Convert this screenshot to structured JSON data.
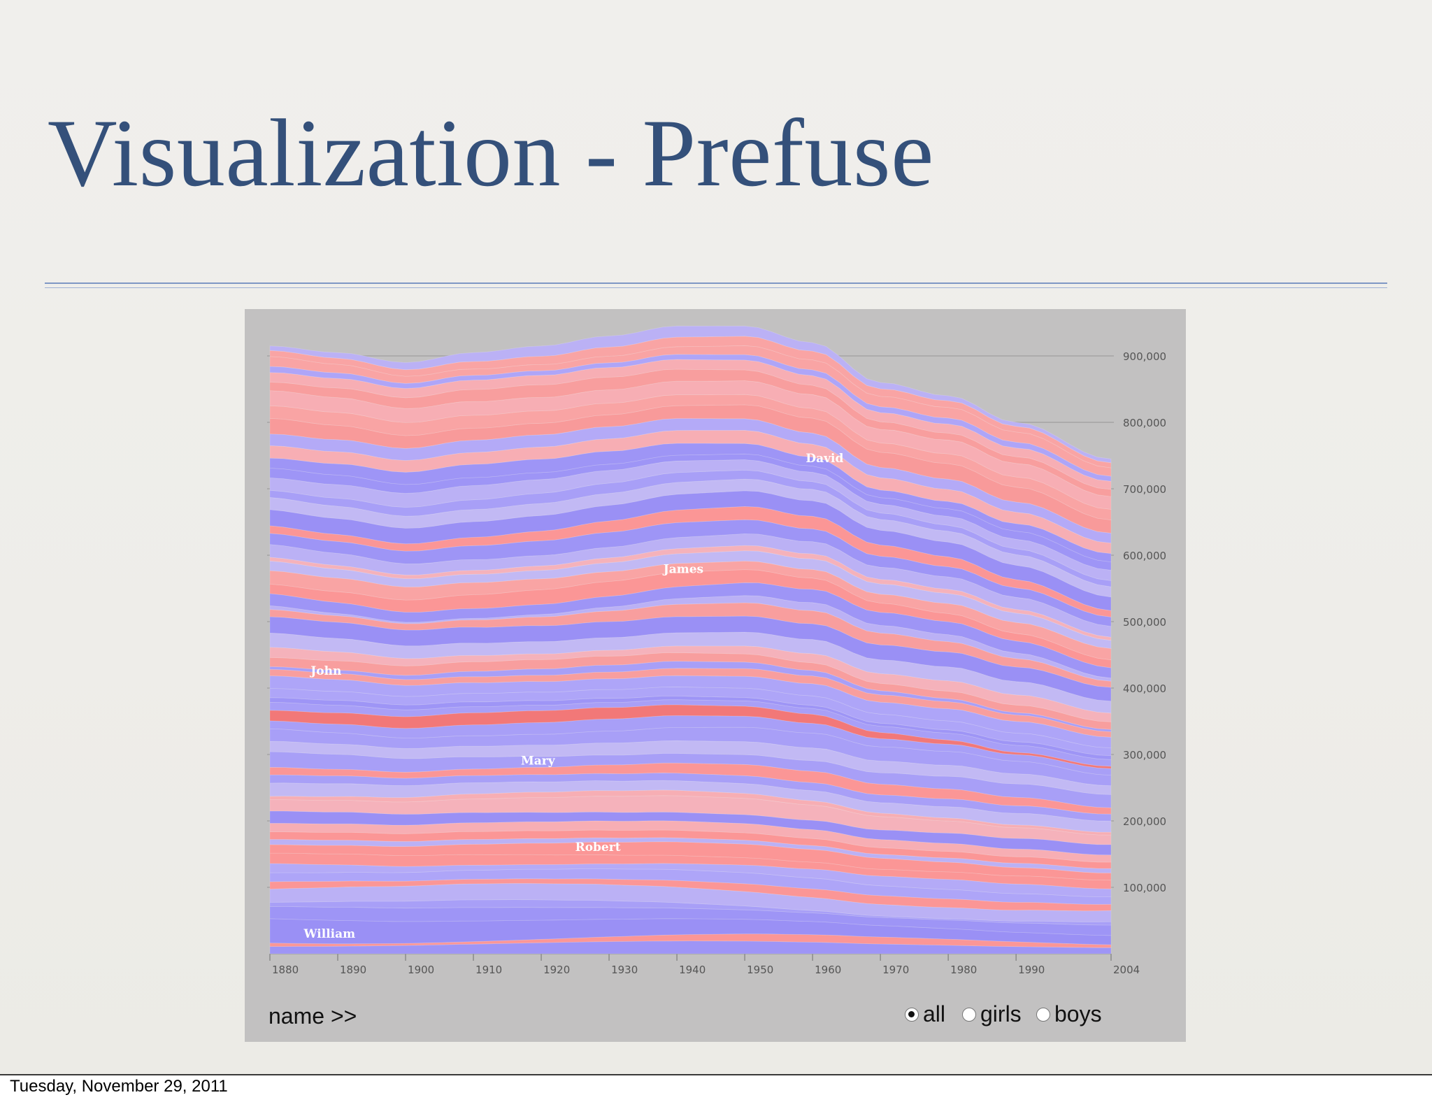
{
  "slide": {
    "title": "Visualization - Prefuse",
    "date": "Tuesday, November 29, 2011"
  },
  "controls": {
    "name_link": "name >>",
    "filters": [
      {
        "label": "all",
        "checked": true
      },
      {
        "label": "girls",
        "checked": false
      },
      {
        "label": "boys",
        "checked": false
      }
    ]
  },
  "colors": {
    "girl": "#f99a9a",
    "boy": "#a49cf6",
    "panel": "#c2c1c1"
  },
  "chart_data": {
    "type": "area",
    "x_ticks": [
      "1880",
      "1890",
      "1900",
      "1910",
      "1920",
      "1930",
      "1940",
      "1950",
      "1960",
      "1970",
      "1980",
      "1990",
      "2004"
    ],
    "y_ticks": [
      "100,000",
      "200,000",
      "300,000",
      "400,000",
      "500,000",
      "600,000",
      "700,000",
      "800,000",
      "900,000"
    ],
    "ylim": [
      0,
      950000
    ],
    "grid": true,
    "total": {
      "x": [
        1880,
        1890,
        1900,
        1910,
        1920,
        1930,
        1940,
        1950,
        1960,
        1970,
        1980,
        1990,
        2004
      ],
      "y": [
        915000,
        905000,
        890000,
        905000,
        915000,
        930000,
        945000,
        945000,
        920000,
        860000,
        840000,
        800000,
        745000
      ]
    },
    "labels": [
      {
        "name": "William",
        "x": 1885,
        "y": 24000
      },
      {
        "name": "Robert",
        "x": 1925,
        "y": 155000
      },
      {
        "name": "Mary",
        "x": 1917,
        "y": 285000
      },
      {
        "name": "John",
        "x": 1886,
        "y": 420000
      },
      {
        "name": "James",
        "x": 1938,
        "y": 573000
      },
      {
        "name": "David",
        "x": 1959,
        "y": 740000
      }
    ]
  }
}
